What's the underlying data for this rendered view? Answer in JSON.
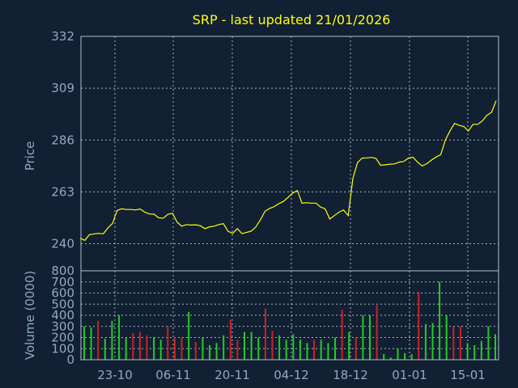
{
  "chart_data": {
    "title": "SRP - last updated 21/01/2026",
    "type": "line",
    "price": {
      "ylabel": "Price",
      "ylim": [
        228,
        332
      ],
      "yticks": [
        "332",
        "309",
        "286",
        "263",
        "240"
      ],
      "ytick_values": [
        332,
        309,
        286,
        263,
        240
      ],
      "color": "#ffff00",
      "grid": true,
      "values": [
        242.5,
        241.5,
        244,
        244.4,
        244.6,
        244.4,
        247,
        249,
        254.8,
        255.5,
        255.2,
        255.2,
        255,
        255.4,
        254,
        253.2,
        253.1,
        251.5,
        251.4,
        253.1,
        253.5,
        249.5,
        247.8,
        248.5,
        248.3,
        248.4,
        248,
        246.7,
        247.5,
        247.8,
        248.5,
        248.9,
        245.5,
        244.6,
        246.7,
        244.5,
        245,
        245.6,
        247.4,
        250.6,
        254.4,
        255.7,
        256.5,
        257.8,
        258.8,
        260.6,
        262.5,
        263.6,
        258,
        258.2,
        258,
        258,
        256.3,
        255.5,
        251,
        252.5,
        254,
        255,
        252.5,
        269,
        276,
        278,
        278.1,
        278.3,
        277.9,
        274.8,
        275,
        275.3,
        275.4,
        276.2,
        276.5,
        278,
        278.4,
        276.2,
        274.5,
        275.5,
        277.1,
        278.5,
        279.5,
        286,
        290,
        293.4,
        292.5,
        292,
        290,
        293,
        293,
        294.5,
        297,
        298.3,
        303.5
      ]
    },
    "volume": {
      "ylabel": "Volume (0000)",
      "ylim": [
        0,
        800
      ],
      "yticks": [
        "800",
        "700",
        "600",
        "500",
        "400",
        "300",
        "200",
        "100",
        "0"
      ],
      "ytick_values": [
        800,
        700,
        600,
        500,
        400,
        300,
        200,
        100,
        0
      ],
      "grid": true,
      "up_color": "#22cc22",
      "down_color": "#cc2222",
      "bars": [
        {
          "v": 300,
          "d": "up"
        },
        {
          "v": 290,
          "d": "up"
        },
        {
          "v": 350,
          "d": "down"
        },
        {
          "v": 190,
          "d": "up"
        },
        {
          "v": 350,
          "d": "up"
        },
        {
          "v": 400,
          "d": "up"
        },
        {
          "v": 200,
          "d": "up"
        },
        {
          "v": 240,
          "d": "down"
        },
        {
          "v": 250,
          "d": "down"
        },
        {
          "v": 220,
          "d": "down"
        },
        {
          "v": 200,
          "d": "up"
        },
        {
          "v": 180,
          "d": "up"
        },
        {
          "v": 300,
          "d": "down"
        },
        {
          "v": 200,
          "d": "down"
        },
        {
          "v": 200,
          "d": "down"
        },
        {
          "v": 430,
          "d": "up"
        },
        {
          "v": 160,
          "d": "down"
        },
        {
          "v": 200,
          "d": "up"
        },
        {
          "v": 130,
          "d": "up"
        },
        {
          "v": 150,
          "d": "up"
        },
        {
          "v": 220,
          "d": "up"
        },
        {
          "v": 360,
          "d": "down"
        },
        {
          "v": 180,
          "d": "down"
        },
        {
          "v": 250,
          "d": "up"
        },
        {
          "v": 250,
          "d": "up"
        },
        {
          "v": 200,
          "d": "up"
        },
        {
          "v": 460,
          "d": "down"
        },
        {
          "v": 260,
          "d": "down"
        },
        {
          "v": 220,
          "d": "up"
        },
        {
          "v": 180,
          "d": "up"
        },
        {
          "v": 230,
          "d": "up"
        },
        {
          "v": 180,
          "d": "up"
        },
        {
          "v": 150,
          "d": "up"
        },
        {
          "v": 180,
          "d": "down"
        },
        {
          "v": 180,
          "d": "up"
        },
        {
          "v": 150,
          "d": "up"
        },
        {
          "v": 200,
          "d": "up"
        },
        {
          "v": 450,
          "d": "down"
        },
        {
          "v": 250,
          "d": "up"
        },
        {
          "v": 200,
          "d": "down"
        },
        {
          "v": 400,
          "d": "up"
        },
        {
          "v": 400,
          "d": "up"
        },
        {
          "v": 490,
          "d": "down"
        },
        {
          "v": 50,
          "d": "up"
        },
        {
          "v": 20,
          "d": "up"
        },
        {
          "v": 100,
          "d": "up"
        },
        {
          "v": 60,
          "d": "up"
        },
        {
          "v": 50,
          "d": "up"
        },
        {
          "v": 610,
          "d": "down"
        },
        {
          "v": 320,
          "d": "up"
        },
        {
          "v": 330,
          "d": "up"
        },
        {
          "v": 700,
          "d": "up"
        },
        {
          "v": 400,
          "d": "up"
        },
        {
          "v": 300,
          "d": "down"
        },
        {
          "v": 300,
          "d": "down"
        },
        {
          "v": 150,
          "d": "up"
        },
        {
          "v": 130,
          "d": "up"
        },
        {
          "v": 170,
          "d": "up"
        },
        {
          "v": 300,
          "d": "up"
        },
        {
          "v": 230,
          "d": "up"
        }
      ]
    },
    "x_ticks": [
      "23-10",
      "06-11",
      "20-11",
      "04-12",
      "18-12",
      "01-01",
      "15-01"
    ]
  }
}
